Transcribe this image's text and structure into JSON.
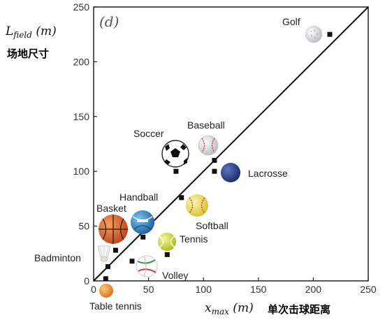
{
  "chart_data": {
    "type": "scatter",
    "panel_label": "(d)",
    "xlabel": "x_max (m)",
    "ylabel": "L_field (m)",
    "xlabel_cn": "单次击球距离",
    "ylabel_cn": "场地尺寸",
    "xlim": [
      0,
      250
    ],
    "ylim": [
      0,
      250
    ],
    "xticks": [
      "0",
      "50",
      "100",
      "150",
      "200",
      "250"
    ],
    "yticks": [
      "0",
      "50",
      "100",
      "150",
      "200",
      "250"
    ],
    "reference_line": {
      "from": [
        0,
        0
      ],
      "to": [
        250,
        250
      ]
    },
    "points": [
      {
        "label": "Golf",
        "x": 215,
        "y": 225
      },
      {
        "label": "Baseball",
        "x": 110,
        "y": 110
      },
      {
        "label": "Lacrosse",
        "x": 110,
        "y": 100
      },
      {
        "label": "Soccer",
        "x": 75,
        "y": 100
      },
      {
        "label": "Handball",
        "x": 80,
        "y": 76
      },
      {
        "label": "Softball",
        "x": 45,
        "y": 40
      },
      {
        "label": "Basket",
        "x": 20,
        "y": 28
      },
      {
        "label": "Tennis",
        "x": 67,
        "y": 24
      },
      {
        "label": "Badminton",
        "x": 13,
        "y": 13
      },
      {
        "label": "Volley",
        "x": 35,
        "y": 18
      },
      {
        "label": "Table tennis",
        "x": 11,
        "y": 2
      }
    ],
    "labels": {
      "golf": "Golf",
      "baseball": "Baseball",
      "soccer": "Soccer",
      "lacrosse": "Lacrosse",
      "handball": "Handball",
      "softball": "Softball",
      "basket": "Basket",
      "tennis": "Tennis",
      "badminton": "Badminton",
      "volley": "Volley",
      "table_tennis": "Table tennis"
    },
    "colors": {
      "line": "#111111",
      "marker": "#111111",
      "basketball": "#e06a2a",
      "lacrosse": "#2a3f8f",
      "tennis": "#d9e832",
      "softball": "#f2e35a",
      "table_tennis": "#f29a2e",
      "handball": "#3a8fc9"
    }
  }
}
